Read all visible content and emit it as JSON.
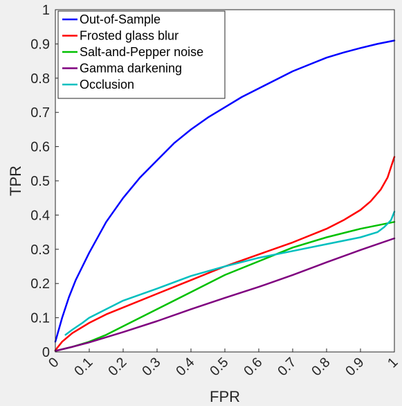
{
  "chart_data": {
    "type": "line",
    "title": "",
    "xlabel": "FPR",
    "ylabel": "TPR",
    "xlim": [
      0,
      1
    ],
    "ylim": [
      0,
      1
    ],
    "x_ticks": [
      "0",
      "0.1",
      "0.2",
      "0.3",
      "0.4",
      "0.5",
      "0.6",
      "0.7",
      "0.8",
      "0.9",
      "1"
    ],
    "y_ticks": [
      "0",
      "0.1",
      "0.2",
      "0.3",
      "0.4",
      "0.5",
      "0.6",
      "0.7",
      "0.8",
      "0.9",
      "1"
    ],
    "grid": false,
    "legend_position": "top-left",
    "series": [
      {
        "name": "Out-of-Sample",
        "color": "#0000ff",
        "x": [
          0.0,
          0.02,
          0.04,
          0.06,
          0.08,
          0.1,
          0.15,
          0.2,
          0.25,
          0.3,
          0.35,
          0.4,
          0.45,
          0.5,
          0.55,
          0.6,
          0.65,
          0.7,
          0.75,
          0.8,
          0.85,
          0.9,
          0.95,
          1.0
        ],
        "y": [
          0.03,
          0.1,
          0.16,
          0.21,
          0.25,
          0.29,
          0.38,
          0.45,
          0.51,
          0.56,
          0.61,
          0.65,
          0.685,
          0.715,
          0.745,
          0.77,
          0.795,
          0.82,
          0.84,
          0.86,
          0.875,
          0.888,
          0.9,
          0.91
        ]
      },
      {
        "name": "Frosted glass blur",
        "color": "#ff0000",
        "x": [
          0.0,
          0.02,
          0.05,
          0.1,
          0.15,
          0.2,
          0.3,
          0.4,
          0.5,
          0.6,
          0.7,
          0.8,
          0.85,
          0.9,
          0.93,
          0.96,
          0.98,
          0.99,
          1.0
        ],
        "y": [
          0.005,
          0.03,
          0.055,
          0.085,
          0.11,
          0.13,
          0.17,
          0.21,
          0.25,
          0.285,
          0.32,
          0.36,
          0.385,
          0.415,
          0.44,
          0.475,
          0.51,
          0.54,
          0.57
        ]
      },
      {
        "name": "Salt-and-Pepper noise",
        "color": "#00c000",
        "x": [
          0.0,
          0.05,
          0.1,
          0.15,
          0.2,
          0.3,
          0.4,
          0.5,
          0.6,
          0.7,
          0.8,
          0.9,
          1.0
        ],
        "y": [
          0.003,
          0.015,
          0.03,
          0.05,
          0.075,
          0.125,
          0.175,
          0.225,
          0.265,
          0.305,
          0.335,
          0.36,
          0.38
        ]
      },
      {
        "name": "Gamma darkening",
        "color": "#7f007f",
        "x": [
          0.0,
          0.05,
          0.1,
          0.2,
          0.3,
          0.4,
          0.5,
          0.6,
          0.7,
          0.8,
          0.9,
          1.0
        ],
        "y": [
          0.003,
          0.015,
          0.028,
          0.058,
          0.09,
          0.125,
          0.158,
          0.19,
          0.225,
          0.262,
          0.298,
          0.332
        ]
      },
      {
        "name": "Occlusion",
        "color": "#00bfbf",
        "x": [
          0.03,
          0.05,
          0.08,
          0.1,
          0.15,
          0.2,
          0.3,
          0.4,
          0.5,
          0.6,
          0.7,
          0.8,
          0.9,
          0.95,
          0.97,
          0.99,
          1.0
        ],
        "y": [
          0.05,
          0.065,
          0.085,
          0.1,
          0.125,
          0.15,
          0.185,
          0.222,
          0.25,
          0.275,
          0.295,
          0.315,
          0.335,
          0.35,
          0.365,
          0.385,
          0.41
        ]
      }
    ]
  }
}
